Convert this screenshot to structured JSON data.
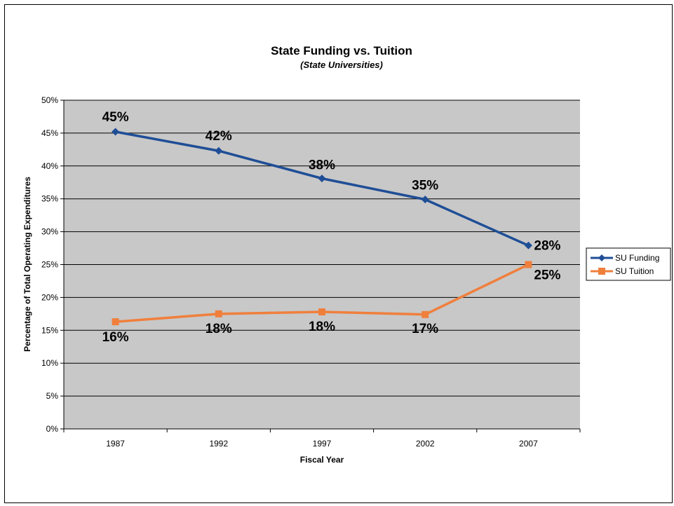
{
  "chart_data": {
    "type": "line",
    "title": "State Funding vs. Tuition",
    "subtitle": "(State Universities)",
    "xlabel": "Fiscal Year",
    "ylabel": "Percentage of Total Operating Expenditures",
    "categories": [
      "1987",
      "1992",
      "1997",
      "2002",
      "2007"
    ],
    "ylim": [
      0,
      50
    ],
    "y_ticks": [
      "0%",
      "5%",
      "10%",
      "15%",
      "20%",
      "25%",
      "30%",
      "35%",
      "40%",
      "45%",
      "50%"
    ],
    "grid": true,
    "legend_position": "right",
    "series": [
      {
        "name": "SU Funding",
        "values": [
          45.2,
          42.3,
          38.1,
          34.9,
          27.9
        ],
        "labels": [
          "45%",
          "42%",
          "38%",
          "35%",
          "28%"
        ],
        "color": "#1f4e96",
        "marker": "diamond"
      },
      {
        "name": "SU Tuition",
        "values": [
          16.3,
          17.5,
          17.8,
          17.4,
          25.0
        ],
        "labels": [
          "16%",
          "18%",
          "18%",
          "17%",
          "25%"
        ],
        "color": "#f07f3c",
        "marker": "square"
      }
    ]
  },
  "colors": {
    "plot_background": "#c8c8c8",
    "gridline": "#000000"
  }
}
